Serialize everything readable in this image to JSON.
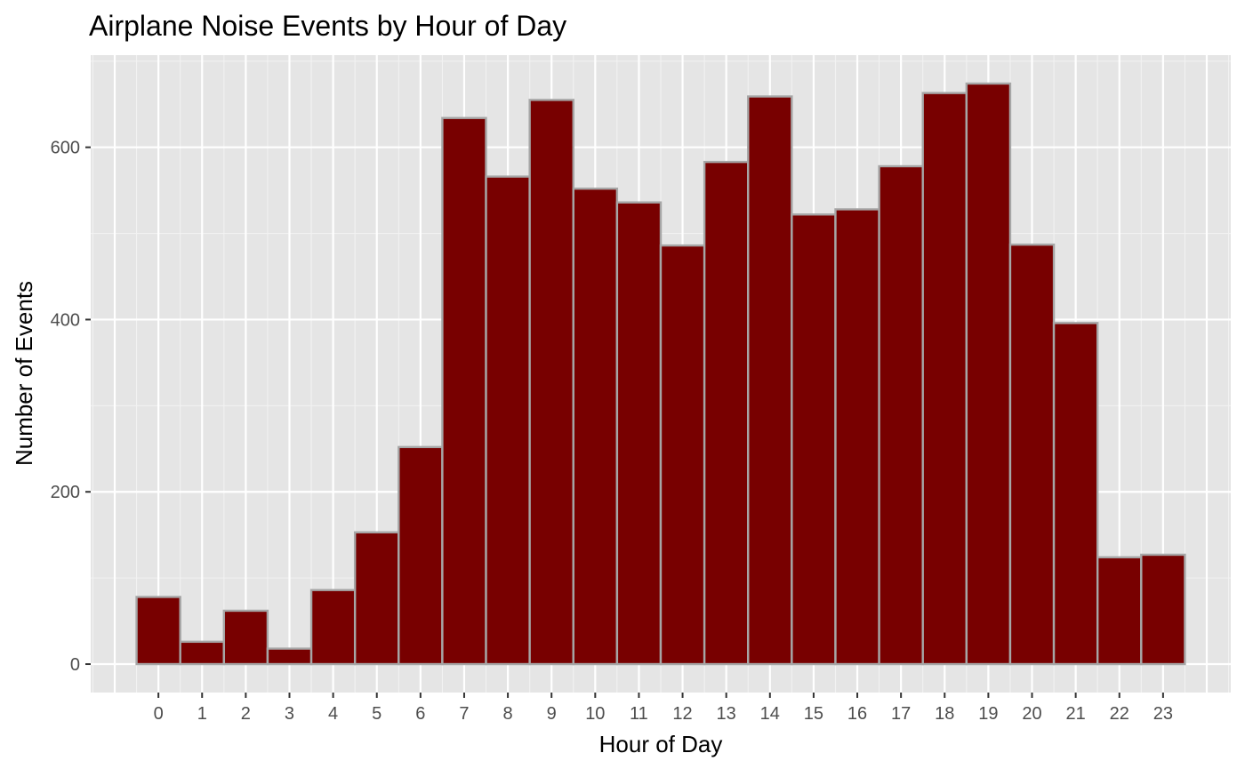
{
  "chart_data": {
    "type": "bar",
    "title": "Airplane Noise Events by Hour of Day",
    "xlabel": "Hour of Day",
    "ylabel": "Number of Events",
    "categories": [
      "0",
      "1",
      "2",
      "3",
      "4",
      "5",
      "6",
      "7",
      "8",
      "9",
      "10",
      "11",
      "12",
      "13",
      "14",
      "15",
      "16",
      "17",
      "18",
      "19",
      "20",
      "21",
      "22",
      "23"
    ],
    "values": [
      78,
      26,
      62,
      18,
      86,
      153,
      252,
      634,
      566,
      655,
      552,
      536,
      486,
      583,
      659,
      522,
      528,
      578,
      663,
      674,
      487,
      396,
      124,
      127
    ],
    "ylim": [
      -33,
      707
    ],
    "yticks": [
      0,
      200,
      400,
      600
    ],
    "grid": true,
    "legend": "none",
    "colors": {
      "bar_fill": "#780000",
      "bar_stroke": "#a6a6a6",
      "panel_background": "#e5e5e5",
      "grid_major": "#ffffff",
      "grid_minor": "#f2f2f2",
      "tick_label": "#4d4d4d",
      "text": "#000000"
    }
  }
}
